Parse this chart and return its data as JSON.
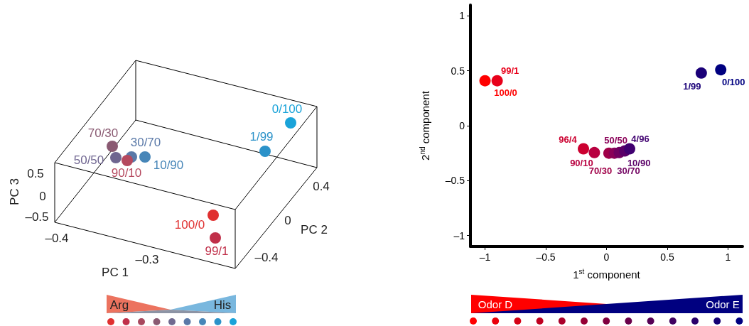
{
  "chart_data": [
    {
      "type": "other",
      "xlabel": "PC 1",
      "ylabel": "PC 3",
      "annotations": [
        "70/30",
        "30/70",
        "50/50",
        "90/10",
        "10/90",
        "1/99",
        "0/100",
        "100/0",
        "99/1",
        "0.5",
        "0",
        "–0.5",
        "–0.4",
        "–0.3",
        "0.4",
        "0",
        "–0.4",
        "PC 2",
        "Arg",
        "His"
      ]
    },
    {
      "type": "scatter",
      "marker": "circle",
      "x": [
        -1.0,
        -0.9,
        -0.19,
        -0.1,
        0.02,
        0.065,
        0.105,
        0.15,
        0.19,
        0.78,
        0.94
      ],
      "values": [
        0.41,
        0.41,
        -0.21,
        -0.245,
        -0.25,
        -0.25,
        -0.245,
        -0.23,
        -0.21,
        0.48,
        0.51
      ],
      "colors": [
        "#ff0000",
        "#e8001a",
        "#cc0030",
        "#b80040",
        "#a00048",
        "#8a0058",
        "#700060",
        "#5a0068",
        "#400070",
        "#1a0078",
        "#000080"
      ],
      "xlim": [
        -1.12,
        1.12
      ],
      "ylim": [
        -1.1,
        1.1
      ],
      "xticks": [
        {
          "value": -1,
          "label": "–1"
        },
        {
          "value": -0.5,
          "label": "–0.5"
        },
        0,
        0.5,
        1
      ],
      "yticks": [
        {
          "value": -1,
          "label": "–1"
        },
        {
          "value": -0.5,
          "label": "–0.5"
        },
        0,
        0.5,
        1
      ],
      "xlabel": "1$^{st}$ component",
      "ylabel": "2$^{nd}$ component",
      "annotations": [
        {
          "text": "100/0",
          "x": -1.0,
          "y": 0.41
        },
        {
          "text": "99/1",
          "x": -0.9,
          "y": 0.41
        },
        {
          "text": "96/4",
          "x": -0.19,
          "y": -0.21
        },
        {
          "text": "90/10",
          "x": -0.1,
          "y": -0.245
        },
        {
          "text": "70/30",
          "x": 0.02,
          "y": -0.25
        },
        {
          "text": "50/50",
          "x": 0.065,
          "y": -0.25
        },
        {
          "text": "30/70",
          "x": 0.105,
          "y": -0.245
        },
        {
          "text": "10/90",
          "x": 0.15,
          "y": -0.23
        },
        {
          "text": "4/96",
          "x": 0.19,
          "y": -0.21
        },
        {
          "text": "1/99",
          "x": 0.78,
          "y": 0.48
        },
        {
          "text": "0/100",
          "x": 0.94,
          "y": 0.51
        },
        "Odor D",
        "Odor E"
      ]
    }
  ]
}
